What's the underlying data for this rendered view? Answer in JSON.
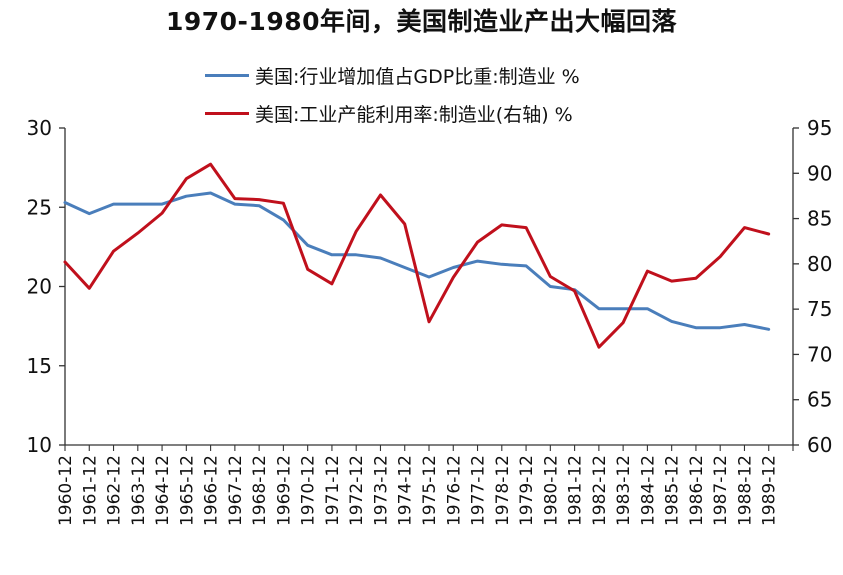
{
  "chart_data": {
    "type": "line",
    "title": "1970-1980年间，美国制造业产出大幅回落",
    "categories": [
      "1960-12",
      "1961-12",
      "1962-12",
      "1963-12",
      "1964-12",
      "1965-12",
      "1966-12",
      "1967-12",
      "1968-12",
      "1969-12",
      "1970-12",
      "1971-12",
      "1972-12",
      "1973-12",
      "1974-12",
      "1975-12",
      "1976-12",
      "1977-12",
      "1978-12",
      "1979-12",
      "1980-12",
      "1981-12",
      "1982-12",
      "1983-12",
      "1984-12",
      "1985-12",
      "1986-12",
      "1987-12",
      "1988-12",
      "1989-12"
    ],
    "series": [
      {
        "name": "美国:行业增加值占GDP比重:制造业 %",
        "axis": "left",
        "color": "#4a7ebb",
        "values": [
          25.3,
          24.6,
          25.2,
          25.2,
          25.2,
          25.7,
          25.9,
          25.2,
          25.1,
          24.2,
          22.6,
          22.0,
          22.0,
          21.8,
          21.2,
          20.6,
          21.2,
          21.6,
          21.4,
          21.3,
          20.0,
          19.8,
          18.6,
          18.6,
          18.6,
          17.8,
          17.4,
          17.4,
          17.6,
          17.3
        ]
      },
      {
        "name": "美国:工业产能利用率:制造业(右轴) %",
        "axis": "right",
        "color": "#c0101c",
        "values": [
          80.2,
          77.3,
          81.4,
          83.4,
          85.6,
          89.4,
          91.0,
          87.2,
          87.1,
          86.7,
          79.4,
          77.8,
          83.6,
          87.6,
          84.4,
          73.6,
          78.5,
          82.4,
          84.3,
          84.0,
          78.6,
          77.0,
          70.8,
          73.5,
          79.2,
          78.1,
          78.4,
          80.8,
          84.0,
          83.3
        ]
      }
    ],
    "y_left": {
      "min": 10,
      "max": 30,
      "ticks": [
        10,
        15,
        20,
        25,
        30
      ]
    },
    "y_right": {
      "min": 60,
      "max": 95,
      "ticks": [
        60,
        65,
        70,
        75,
        80,
        85,
        90,
        95
      ]
    },
    "grid": false,
    "legend_position": "top"
  }
}
